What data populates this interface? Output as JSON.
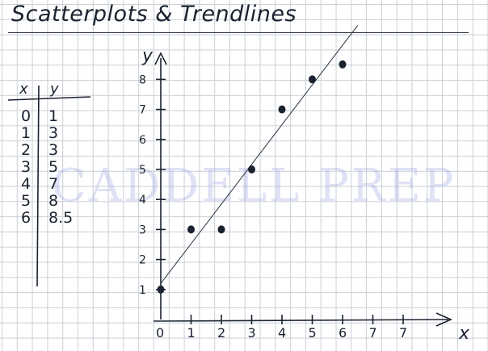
{
  "title": "Scatterplots & Trendlines",
  "watermark": "CADDELL PREP",
  "table": {
    "header_x": "x",
    "header_y": "y",
    "rows": [
      {
        "x": "0",
        "y": "1"
      },
      {
        "x": "1",
        "y": "3"
      },
      {
        "x": "2",
        "y": "3"
      },
      {
        "x": "3",
        "y": "5"
      },
      {
        "x": "4",
        "y": "7"
      },
      {
        "x": "5",
        "y": "8"
      },
      {
        "x": "6",
        "y": "8.5"
      }
    ]
  },
  "graph": {
    "x_axis_label": "x",
    "y_axis_label": "y",
    "x_ticks": [
      "0",
      "1",
      "2",
      "3",
      "4",
      "5",
      "6",
      "7",
      "7"
    ],
    "y_ticks": [
      "1",
      "2",
      "3",
      "4",
      "5",
      "6",
      "7",
      "8"
    ],
    "points": [
      {
        "x": 0,
        "y": 1
      },
      {
        "x": 1,
        "y": 3
      },
      {
        "x": 2,
        "y": 3
      },
      {
        "x": 3,
        "y": 5
      },
      {
        "x": 4,
        "y": 7
      },
      {
        "x": 5,
        "y": 8
      },
      {
        "x": 6,
        "y": 8.5
      }
    ],
    "trendline": {
      "x_start": 0,
      "y_start": 1.2,
      "x_end": 6.5,
      "y_end": 9.8
    },
    "ink_color": "#1a2230"
  }
}
